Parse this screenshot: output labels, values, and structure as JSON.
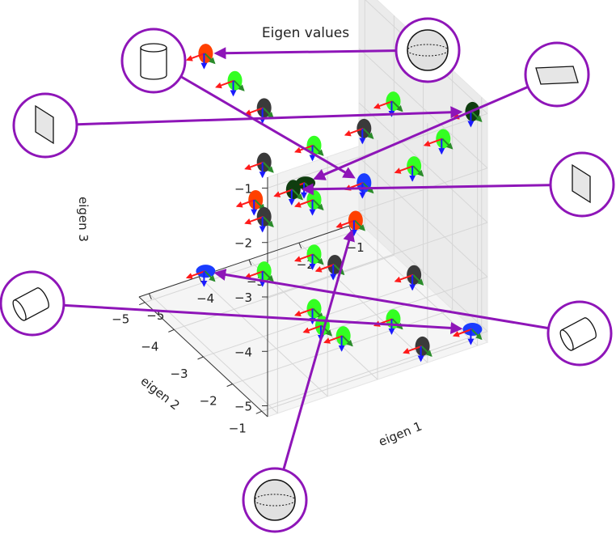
{
  "chart_data": {
    "type": "scatter",
    "dimensions": 3,
    "title": "Eigen values",
    "xlabel": "eigen 1",
    "ylabel": "eigen 2",
    "zlabel": "eigen 3",
    "xlim": [
      -5,
      -1
    ],
    "ylim": [
      -5,
      -1
    ],
    "zlim": [
      -5,
      -1
    ],
    "x_ticks": [
      "−5",
      "−4",
      "−3",
      "−2",
      "−1"
    ],
    "y_ticks": [
      "−5",
      "−4",
      "−3",
      "−2",
      "−1"
    ],
    "z_ticks": [
      "−5",
      "−4",
      "−3",
      "−2",
      "−1"
    ],
    "grid": true,
    "marker_colors": {
      "bright_green": "#33ff22",
      "dark_green": "#0f3d0f",
      "dark_gray": "#3a3a3a",
      "red_orange": "#ff4000",
      "blue": "#1a3cff"
    },
    "axis_arrow_colors": {
      "eigen1": "#ff1a1a",
      "eigen2": "#2a8c2a",
      "eigen3": "#1a1aff"
    },
    "points": [
      {
        "x": -1,
        "y": -1,
        "z": -5,
        "color": "blue"
      },
      {
        "x": -1,
        "y": -3,
        "z": -5,
        "color": "dark_gray"
      },
      {
        "x": -1,
        "y": -5,
        "z": -5,
        "color": "red_orange"
      },
      {
        "x": -2,
        "y": -1,
        "z": -5,
        "color": "dark_gray"
      },
      {
        "x": -2,
        "y": -2,
        "z": -5,
        "color": "bright_green"
      },
      {
        "x": -2,
        "y": -4,
        "z": -5,
        "color": "dark_gray"
      },
      {
        "x": -3,
        "y": -2,
        "z": -5,
        "color": "bright_green"
      },
      {
        "x": -3,
        "y": -3,
        "z": -5,
        "color": "bright_green"
      },
      {
        "x": -4,
        "y": -5,
        "z": -5,
        "color": "blue"
      },
      {
        "x": -4,
        "y": -1,
        "z": -4,
        "color": "bright_green"
      },
      {
        "x": -3,
        "y": -3,
        "z": -4,
        "color": "bright_green"
      },
      {
        "x": -4,
        "y": -3,
        "z": -4,
        "color": "bright_green"
      },
      {
        "x": -3,
        "y": -5,
        "z": -4,
        "color": "red_orange"
      },
      {
        "x": -2,
        "y": -5,
        "z": -4,
        "color": "dark_green"
      },
      {
        "x": -1,
        "y": -3,
        "z": -3,
        "color": "bright_green"
      },
      {
        "x": -2,
        "y": -3,
        "z": -3,
        "color": "blue"
      },
      {
        "x": -3,
        "y": -3,
        "z": -3,
        "color": "bright_green"
      },
      {
        "x": -4,
        "y": -3,
        "z": -3,
        "color": "dark_gray"
      },
      {
        "x": -1,
        "y": -2,
        "z": -2,
        "color": "bright_green"
      },
      {
        "x": -2,
        "y": -3,
        "z": -2,
        "color": "dark_gray"
      },
      {
        "x": -4,
        "y": -3,
        "z": -2,
        "color": "dark_gray"
      },
      {
        "x": -4,
        "y": -2,
        "z": -2,
        "color": "dark_green"
      },
      {
        "x": -3,
        "y": -3,
        "z": -2,
        "color": "bright_green"
      },
      {
        "x": -1,
        "y": -1,
        "z": -1,
        "color": "dark_green"
      },
      {
        "x": -2,
        "y": -2,
        "z": -1,
        "color": "bright_green"
      },
      {
        "x": -4,
        "y": -4,
        "z": -1,
        "color": "bright_green"
      },
      {
        "x": -4,
        "y": -5,
        "z": -1,
        "color": "red_orange"
      },
      {
        "x": -4,
        "y": -3,
        "z": -1,
        "color": "dark_gray"
      }
    ],
    "callouts": [
      {
        "shape": "thin-plate-vertical-icon",
        "target": {
          "x": -1,
          "y": -1,
          "z": -1
        }
      },
      {
        "shape": "cylinder-upright-icon",
        "target": {
          "x": -2,
          "y": -3,
          "z": -3
        }
      },
      {
        "shape": "sphere-icon",
        "target": {
          "x": -4,
          "y": -5,
          "z": -1
        }
      },
      {
        "shape": "flat-plate-horizontal-icon",
        "target": {
          "x": -2,
          "y": -5,
          "z": -4
        }
      },
      {
        "shape": "thin-plate-vertical-icon",
        "target": {
          "x": -4,
          "y": -2,
          "z": -2
        }
      },
      {
        "shape": "cylinder-lying-icon",
        "target": {
          "x": -1,
          "y": -1,
          "z": -5
        }
      },
      {
        "shape": "cylinder-lying-icon",
        "target": {
          "x": -4,
          "y": -5,
          "z": -5
        }
      },
      {
        "shape": "sphere-icon",
        "target": {
          "x": -1,
          "y": -5,
          "z": -5
        }
      }
    ],
    "callout_color": "#8e15b8"
  }
}
